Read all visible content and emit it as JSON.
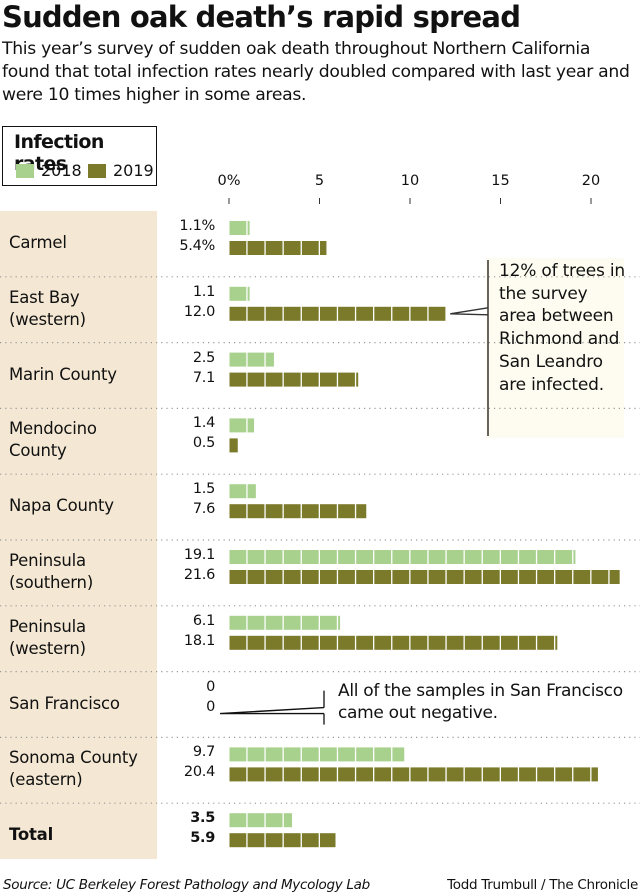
{
  "header": {
    "title": "Sudden oak death’s rapid spread",
    "subtitle": "This year’s survey of sudden oak death throughout Northern California found that total infection rates nearly doubled compared with last year and were 10 times higher in some areas."
  },
  "legend": {
    "title": "Infection rates",
    "items": [
      {
        "label": "2018",
        "color": "#a9d18e"
      },
      {
        "label": "2019",
        "color": "#7b7a2a"
      }
    ]
  },
  "colors": {
    "series_2018": "#a9d18e",
    "series_2019": "#7b7a2a",
    "label_band": "#f4e8d4",
    "annotation_bg": "#fefcf0"
  },
  "chart_data": {
    "type": "bar",
    "orientation": "horizontal",
    "title": "Infection rates",
    "xlabel": "",
    "ylabel": "",
    "x_ticks": [
      "0%",
      "5",
      "10",
      "15",
      "20"
    ],
    "x_tick_values": [
      0,
      5,
      10,
      15,
      20
    ],
    "xlim": [
      0,
      22
    ],
    "grid": false,
    "legend_position": "top-left",
    "categories": [
      "Carmel",
      "East Bay (western)",
      "Marin County",
      "Mendocino County",
      "Napa County",
      "Peninsula (southern)",
      "Peninsula (western)",
      "San Francisco",
      "Sonoma County (eastern)",
      "Total"
    ],
    "category_lines": [
      [
        "Carmel"
      ],
      [
        "East Bay",
        "(western)"
      ],
      [
        "Marin County"
      ],
      [
        "Mendocino",
        "County"
      ],
      [
        "Napa County"
      ],
      [
        "Peninsula",
        "(southern)"
      ],
      [
        "Peninsula",
        "(western)"
      ],
      [
        "San Francisco"
      ],
      [
        "Sonoma County",
        "(eastern)"
      ],
      [
        "Total"
      ]
    ],
    "series": [
      {
        "name": "2018",
        "values": [
          1.1,
          1.1,
          2.5,
          1.4,
          1.5,
          19.1,
          6.1,
          0,
          9.7,
          3.5
        ],
        "labels": [
          "1.1%",
          "1.1",
          "2.5",
          "1.4",
          "1.5",
          "19.1",
          "6.1",
          "0",
          "9.7",
          "3.5"
        ]
      },
      {
        "name": "2019",
        "values": [
          5.4,
          12.0,
          7.1,
          0.5,
          7.6,
          21.6,
          18.1,
          0,
          20.4,
          5.9
        ],
        "labels": [
          "5.4%",
          "12.0",
          "7.1",
          "0.5",
          "7.6",
          "21.6",
          "18.1",
          "0",
          "20.4",
          "5.9"
        ]
      }
    ],
    "annotations": [
      {
        "category": "East Bay (western)",
        "text": "12% of trees in the survey area between Richmond and San Leandro are infected."
      },
      {
        "category": "San Francisco",
        "text": "All of the samples in San Francisco came out negative."
      }
    ]
  },
  "footer": {
    "source": "Source: UC Berkeley Forest Pathology and Mycology Lab",
    "credit": "Todd Trumbull / The Chronicle"
  }
}
